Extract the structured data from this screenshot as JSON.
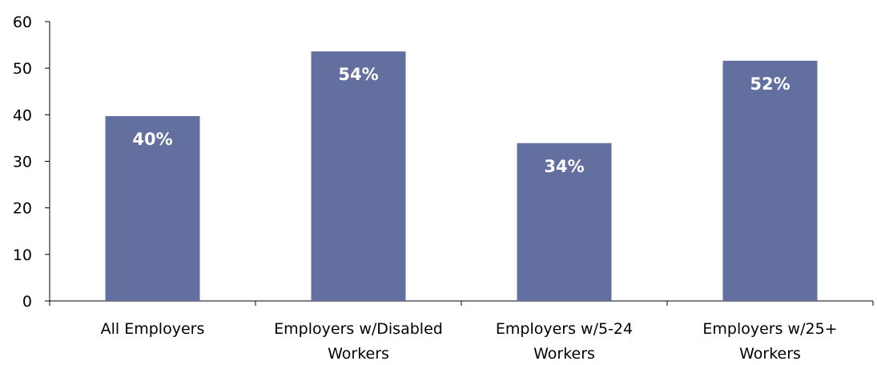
{
  "chart_data": {
    "type": "bar",
    "categories": [
      [
        "All Employers"
      ],
      [
        "Employers w/Disabled",
        "Workers"
      ],
      [
        "Employers w/5-24",
        "Workers"
      ],
      [
        "Employers w/25+",
        "Workers"
      ]
    ],
    "values": [
      39.7,
      53.6,
      33.9,
      51.6
    ],
    "data_labels": [
      "40%",
      "54%",
      "34%",
      "52%"
    ],
    "ylim": [
      0,
      60
    ],
    "yticks": [
      0,
      10,
      20,
      30,
      40,
      50,
      60
    ],
    "title": "",
    "xlabel": "",
    "ylabel": "",
    "grid": false,
    "legend": "none",
    "colors": {
      "bar": "#636f9f"
    }
  }
}
